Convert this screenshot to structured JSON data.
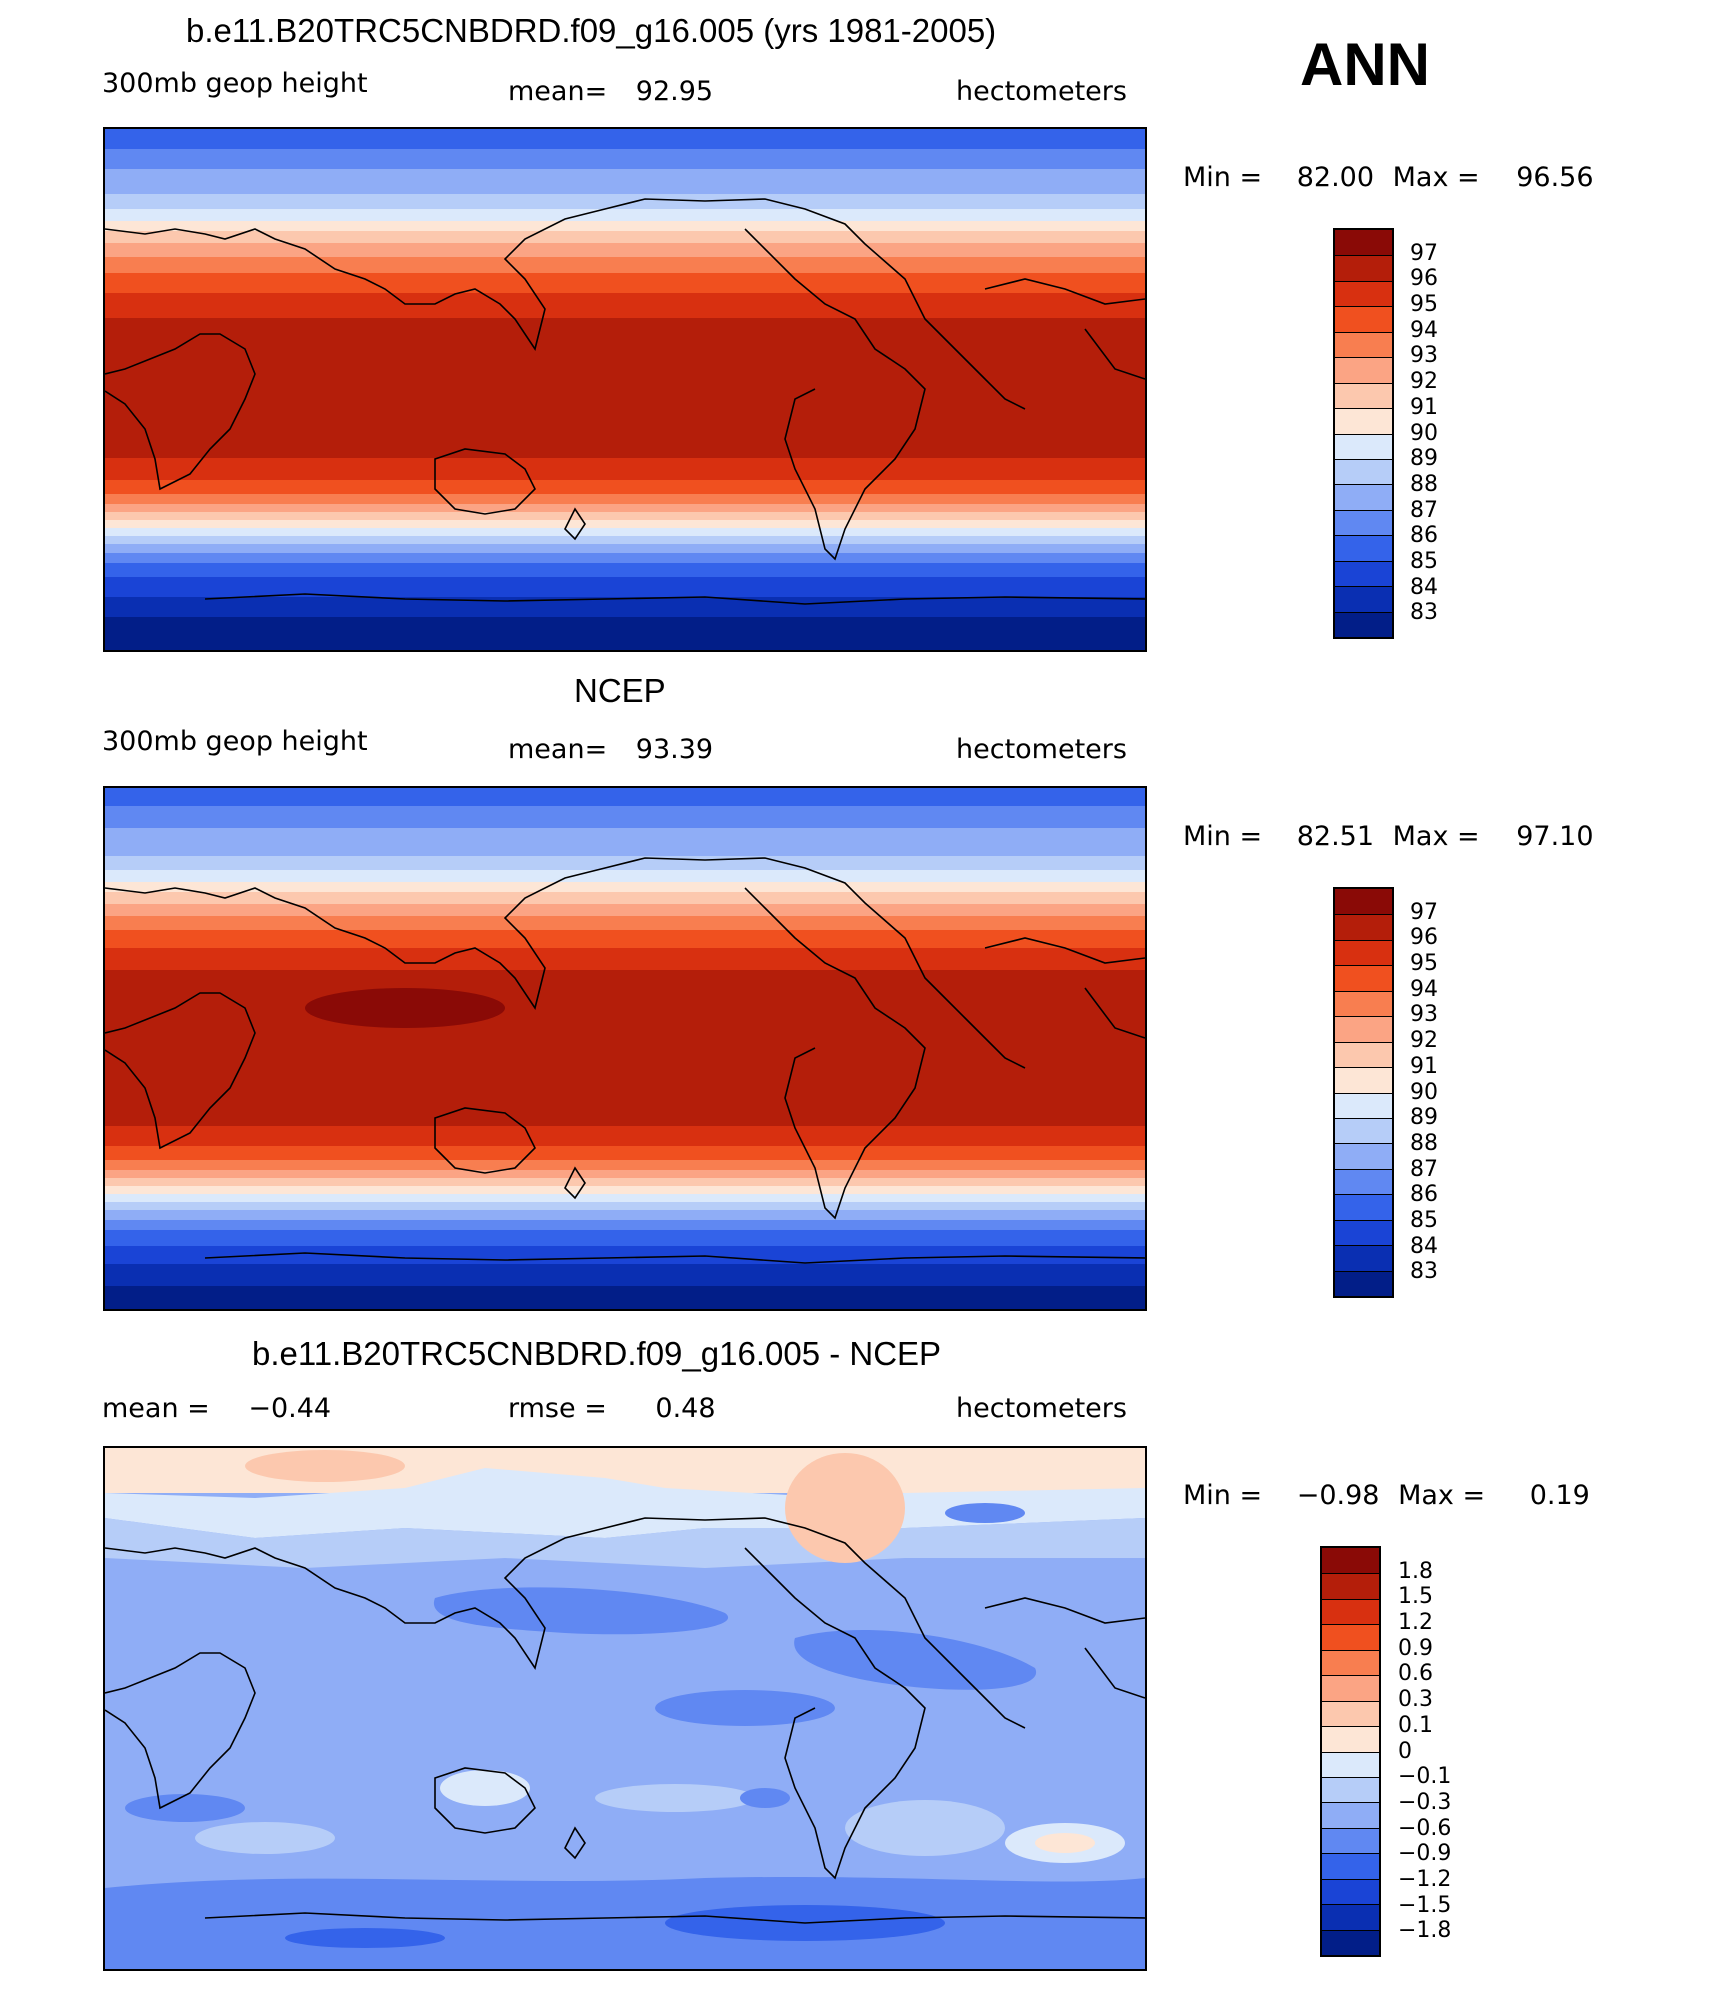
{
  "season": "ANN",
  "units": "hectometers",
  "panels": [
    {
      "title": "b.e11.B20TRC5CNBDRD.f09_g16.005 (yrs 1981-2005)",
      "variable": "300mb geop height",
      "mean_label": "mean=",
      "mean_value": "92.95",
      "min_label": "Min =",
      "min_value": "82.00",
      "max_label": "Max =",
      "max_value": "96.56",
      "colorbar_labels": [
        "97",
        "96",
        "95",
        "94",
        "93",
        "92",
        "91",
        "90",
        "89",
        "88",
        "87",
        "86",
        "85",
        "84",
        "83"
      ]
    },
    {
      "title": "NCEP",
      "variable": "300mb geop height",
      "mean_label": "mean=",
      "mean_value": "93.39",
      "min_label": "Min =",
      "min_value": "82.51",
      "max_label": "Max =",
      "max_value": "97.10",
      "colorbar_labels": [
        "97",
        "96",
        "95",
        "94",
        "93",
        "92",
        "91",
        "90",
        "89",
        "88",
        "87",
        "86",
        "85",
        "84",
        "83"
      ]
    },
    {
      "title": "b.e11.B20TRC5CNBDRD.f09_g16.005 - NCEP",
      "mean_label": "mean =",
      "mean_value": "−0.44",
      "rmse_label": "rmse =",
      "rmse_value": "0.48",
      "min_label": "Min =",
      "min_value": "−0.98",
      "max_label": "Max =",
      "max_value": "0.19",
      "colorbar_labels": [
        "1.8",
        "1.5",
        "1.2",
        "0.9",
        "0.6",
        "0.3",
        "0.1",
        "0",
        "−0.1",
        "−0.3",
        "−0.6",
        "−0.9",
        "−1.2",
        "−1.5",
        "−1.8"
      ]
    }
  ],
  "palette_abs": [
    "#8a0a06",
    "#b41e0a",
    "#d83010",
    "#f0501f",
    "#f87e50",
    "#fba484",
    "#fcc8ae",
    "#fde6d6",
    "#dbe9fb",
    "#b6cdf8",
    "#8fadf6",
    "#6088f2",
    "#3463ea",
    "#1a44d6",
    "#0a2fb2",
    "#021e88"
  ],
  "palette_diff": [
    "#8a0a06",
    "#b41e0a",
    "#d83010",
    "#f0501f",
    "#f87e50",
    "#fba484",
    "#fcc8ae",
    "#fde6d6",
    "#dbe9fb",
    "#b6cdf8",
    "#8fadf6",
    "#6088f2",
    "#3463ea",
    "#1a44d6",
    "#0a2fb2",
    "#021e88"
  ]
}
